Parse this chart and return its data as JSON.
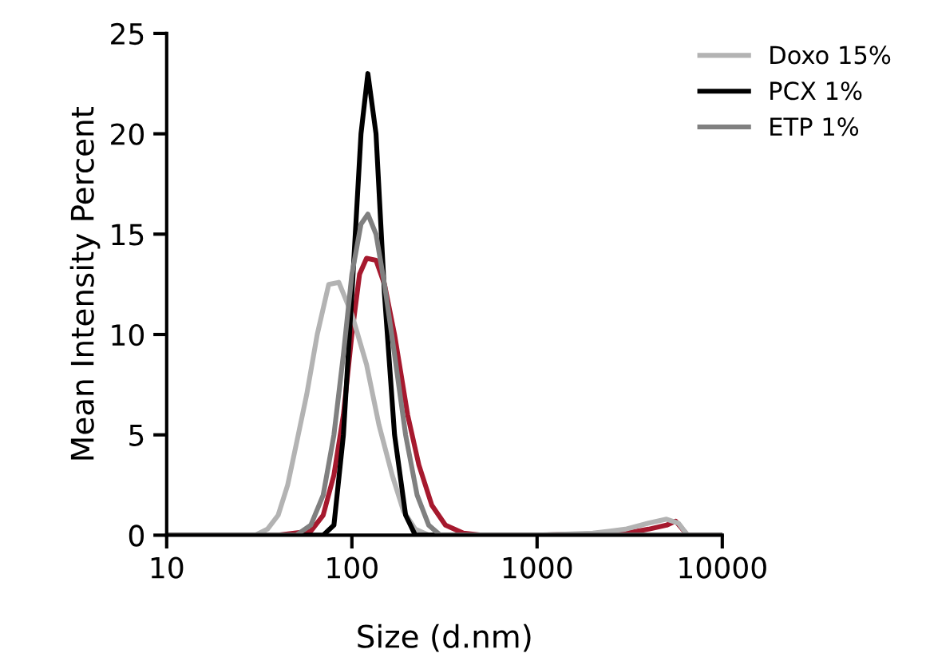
{
  "chart_data": {
    "type": "line",
    "xlabel": "Size (d.nm)",
    "ylabel": "Mean Intensity Percent",
    "log": "x",
    "xlim": [
      10,
      10000
    ],
    "xticks": [
      10,
      100,
      1000,
      10000
    ],
    "ylim": [
      0,
      25
    ],
    "yticks": [
      0,
      5,
      10,
      15,
      20,
      25
    ],
    "grid": false,
    "legend": "top right",
    "marker": "none",
    "line_style": "solid",
    "series": [
      {
        "color": "#a6192e",
        "x": [
          10,
          40,
          60,
          70,
          80,
          90,
          100,
          110,
          120,
          135,
          150,
          170,
          200,
          230,
          270,
          320,
          400,
          500,
          1000,
          3000,
          4000,
          5000,
          5600,
          6500,
          10000
        ],
        "values": [
          0,
          0,
          0.2,
          1,
          3,
          6,
          10,
          13,
          13.8,
          13.7,
          12.5,
          10,
          6,
          3.5,
          1.5,
          0.5,
          0.1,
          0,
          0,
          0.1,
          0.3,
          0.5,
          0.7,
          0,
          0
        ]
      },
      {
        "name": "Doxo 15%",
        "color": "#b3b3b3",
        "x": [
          10,
          30,
          35,
          40,
          45,
          50,
          57,
          65,
          75,
          85,
          100,
          120,
          140,
          165,
          190,
          220,
          260,
          1000,
          2000,
          3000,
          4000,
          5000,
          5800,
          6500,
          10000
        ],
        "values": [
          0,
          0,
          0.3,
          1,
          2.5,
          4.5,
          7,
          10,
          12.5,
          12.6,
          11,
          8.5,
          5.5,
          3,
          1.2,
          0.3,
          0,
          0,
          0.1,
          0.3,
          0.6,
          0.8,
          0.6,
          0,
          0
        ]
      },
      {
        "name": "PCX 1%",
        "color": "#000000",
        "x": [
          10,
          70,
          80,
          90,
          100,
          112,
          122,
          135,
          150,
          170,
          195,
          220,
          10000
        ],
        "values": [
          0,
          0,
          0.5,
          5,
          12,
          20,
          23,
          20,
          12,
          5,
          1,
          0,
          0
        ]
      },
      {
        "name": "ETP 1%",
        "color": "#808080",
        "x": [
          10,
          50,
          60,
          70,
          80,
          90,
          100,
          112,
          122,
          135,
          150,
          170,
          195,
          225,
          260,
          300,
          10000
        ],
        "values": [
          0,
          0,
          0.5,
          2,
          5,
          9,
          13,
          15.5,
          16,
          15,
          12.5,
          9,
          5,
          2,
          0.5,
          0,
          0
        ]
      }
    ]
  }
}
